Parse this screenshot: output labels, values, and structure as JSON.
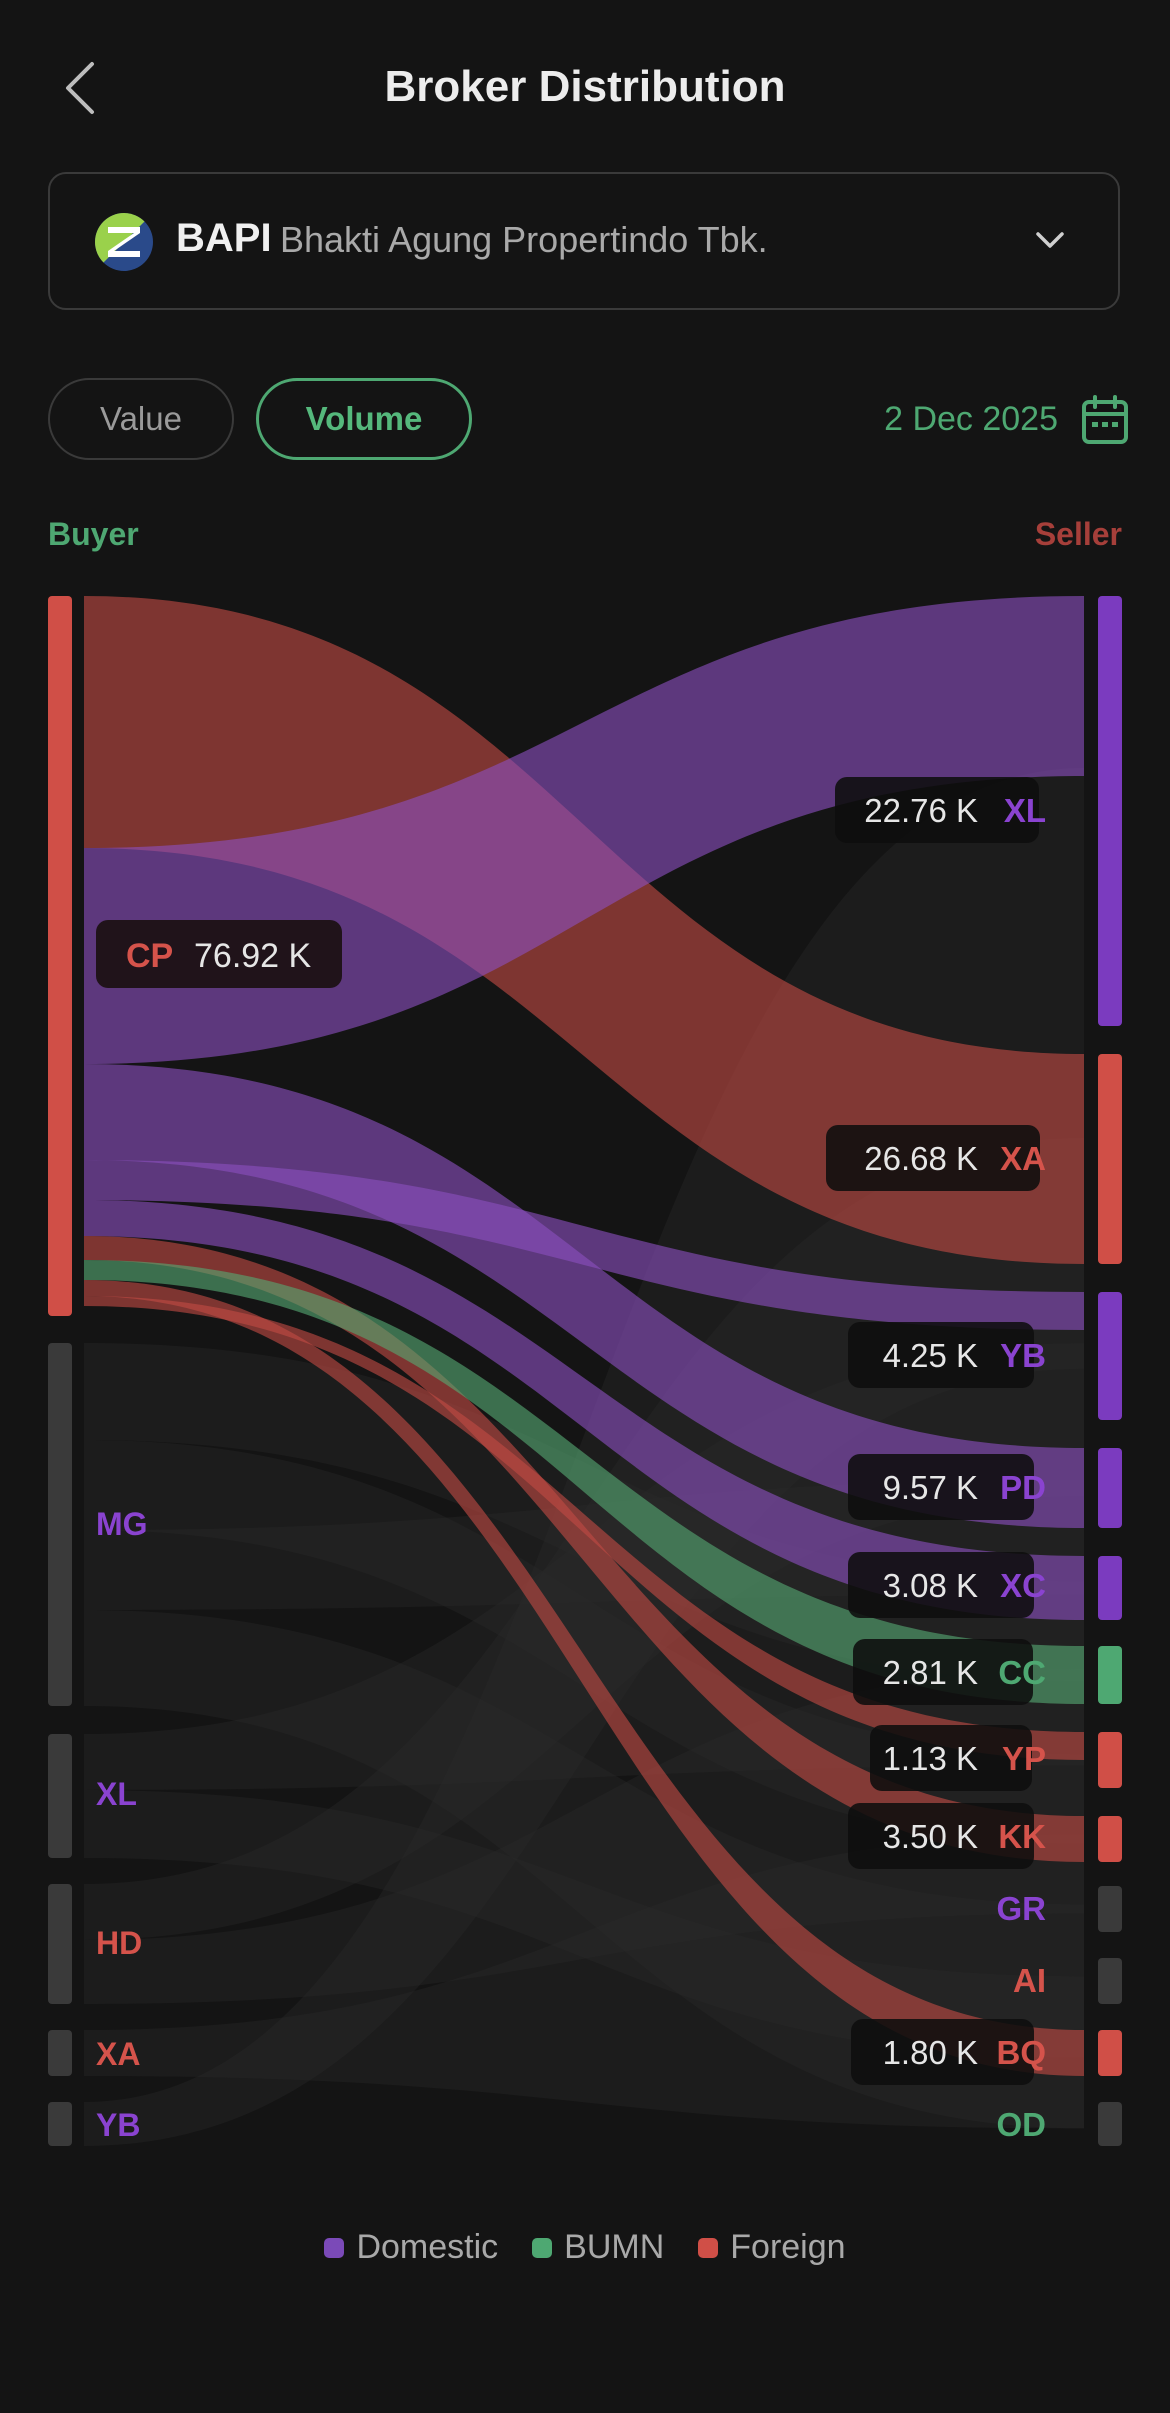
{
  "header": {
    "title": "Broker Distribution"
  },
  "stock": {
    "code": "BAPI",
    "name": "Bhakti Agung Propertindo Tbk."
  },
  "toggles": {
    "value_label": "Value",
    "volume_label": "Volume",
    "active": "Volume"
  },
  "date": "2 Dec 2025",
  "columns": {
    "buyer": "Buyer",
    "seller": "Seller"
  },
  "colors": {
    "domestic": "#7b3bbf",
    "bumn": "#4ea872",
    "foreign": "#d04f47",
    "inactive": "#3a3a3a"
  },
  "legend": [
    {
      "label": "Domestic",
      "type": "domestic"
    },
    {
      "label": "BUMN",
      "type": "bumn"
    },
    {
      "label": "Foreign",
      "type": "foreign"
    }
  ],
  "buyers": [
    {
      "code": "CP",
      "type": "foreign",
      "active": true,
      "label_value": "76.92 K"
    },
    {
      "code": "MG",
      "type": "domestic",
      "active": false
    },
    {
      "code": "XL",
      "type": "domestic",
      "active": false
    },
    {
      "code": "HD",
      "type": "foreign",
      "active": false
    },
    {
      "code": "XA",
      "type": "foreign",
      "active": false
    },
    {
      "code": "YB",
      "type": "domestic",
      "active": false
    }
  ],
  "sellers": [
    {
      "code": "XL",
      "type": "domestic",
      "active": true,
      "label_value": "22.76 K"
    },
    {
      "code": "XA",
      "type": "foreign",
      "active": true,
      "label_value": "26.68 K"
    },
    {
      "code": "YB",
      "type": "domestic",
      "active": true,
      "label_value": "4.25 K"
    },
    {
      "code": "PD",
      "type": "domestic",
      "active": true,
      "label_value": "9.57 K"
    },
    {
      "code": "XC",
      "type": "domestic",
      "active": true,
      "label_value": "3.08 K"
    },
    {
      "code": "CC",
      "type": "bumn",
      "active": true,
      "label_value": "2.81 K"
    },
    {
      "code": "YP",
      "type": "foreign",
      "active": true,
      "label_value": "1.13 K"
    },
    {
      "code": "KK",
      "type": "foreign",
      "active": true,
      "label_value": "3.50 K"
    },
    {
      "code": "GR",
      "type": "domestic",
      "active": false
    },
    {
      "code": "AI",
      "type": "foreign",
      "active": false
    },
    {
      "code": "BQ",
      "type": "foreign",
      "active": true,
      "label_value": "1.80 K"
    },
    {
      "code": "OD",
      "type": "bumn",
      "active": false
    }
  ]
}
